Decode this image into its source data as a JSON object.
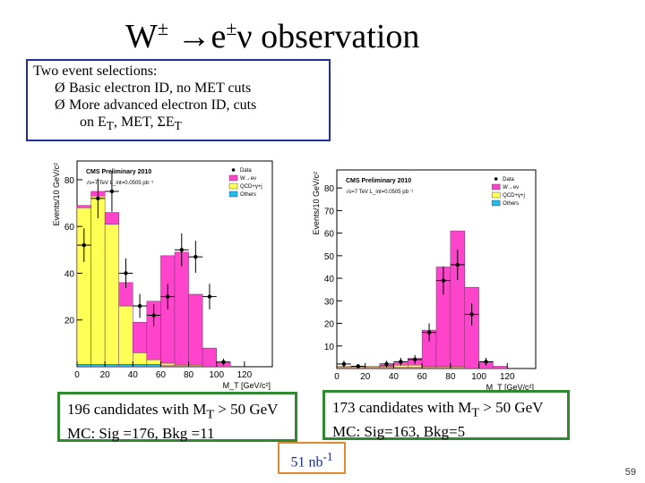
{
  "slide": {
    "title_w": "W",
    "title_pm1": "±",
    "title_arrow_e": " →e",
    "title_pm2": "±",
    "title_rest": "ν observation",
    "page_number": "59"
  },
  "selections": {
    "heading": "Two event selections:",
    "bullet_glyph": "Ø",
    "item1": "Basic electron ID, no MET cuts",
    "item2": "More advanced electron ID,  cuts",
    "item2_cont_pre": "on E",
    "item2_cont_sub": "T",
    "item2_cont_mid": ", MET, ΣE",
    "item2_cont_sub2": "T"
  },
  "candidates_left": {
    "line1_pre": "196 candidates with M",
    "line1_sub": "T",
    "line1_post": " > 50 GeV",
    "line2": "MC: Sig =176, Bkg =11"
  },
  "candidates_right": {
    "line1_pre": "173 candidates with M",
    "line1_sub": "T",
    "line1_post": " > 50 GeV",
    "line2": "MC: Sig=163, Bkg=5"
  },
  "luminosity": {
    "value": "51 nb",
    "sup": "-1"
  },
  "colors": {
    "signal": "#ff44cc",
    "qcd": "#ffff55",
    "others": "#22bbee",
    "data": "#000000",
    "box_blue": "#1f2f9e",
    "box_green": "#2f8a2f",
    "box_orange": "#e08a2c"
  },
  "chart_data": [
    {
      "type": "bar",
      "title": "CMS Preliminary 2010",
      "subtitle": "√s=7 TeV L_int=0.0505 pb⁻¹",
      "xlabel": "M_T [GeV/c²]",
      "ylabel": "Events/10 GeV/c²",
      "xlim": [
        0,
        140
      ],
      "ylim": [
        0,
        88
      ],
      "x_ticks": [
        "0",
        "20",
        "40",
        "60",
        "80",
        "100",
        "120"
      ],
      "y_ticks": [
        "20",
        "40",
        "60",
        "80"
      ],
      "legend": [
        "Data",
        "W→eν",
        "QCD+γ+j",
        "Others"
      ],
      "bin_edges": [
        0,
        10,
        20,
        30,
        40,
        50,
        60,
        70,
        80,
        90,
        100,
        110,
        120,
        130,
        140
      ],
      "series": [
        {
          "name": "Others",
          "values": [
            1,
            1,
            1,
            1,
            1,
            1,
            0.5,
            0.5,
            0.5,
            0,
            0,
            0,
            0,
            0
          ]
        },
        {
          "name": "QCD+γ+j",
          "values": [
            67,
            72,
            60,
            25,
            5,
            2,
            1,
            0.5,
            0.5,
            0,
            0,
            0,
            0,
            0
          ]
        },
        {
          "name": "W→eν",
          "values": [
            1,
            2,
            5,
            10,
            13,
            25,
            46,
            48,
            30,
            8,
            2,
            0,
            0,
            0
          ]
        },
        {
          "name": "Data",
          "values": [
            52,
            72,
            75,
            40,
            26,
            22,
            30,
            50,
            47,
            30,
            2,
            0,
            0,
            0
          ]
        }
      ]
    },
    {
      "type": "bar",
      "title": "CMS Preliminary 2010",
      "subtitle": "√s=7 TeV L_int=0.0505 pb⁻¹",
      "xlabel": "M_T [GeV/c²]",
      "ylabel": "Events/10 GeV/c²",
      "xlim": [
        0,
        140
      ],
      "ylim": [
        0,
        88
      ],
      "x_ticks": [
        "0",
        "20",
        "40",
        "60",
        "80",
        "100",
        "120"
      ],
      "y_ticks": [
        "10",
        "20",
        "30",
        "40",
        "50",
        "60",
        "70",
        "80"
      ],
      "legend": [
        "Data",
        "W→eν",
        "QCD+γ+j",
        "Others"
      ],
      "bin_edges": [
        0,
        10,
        20,
        30,
        40,
        50,
        60,
        70,
        80,
        90,
        100,
        110,
        120,
        130,
        140
      ],
      "series": [
        {
          "name": "Others",
          "values": [
            0.5,
            0.5,
            0.5,
            0.5,
            0.5,
            0.5,
            0.5,
            0.5,
            0.5,
            0,
            0,
            0,
            0,
            0
          ]
        },
        {
          "name": "QCD+γ+j",
          "values": [
            0.5,
            0.5,
            0.5,
            0.5,
            1,
            1,
            0.5,
            0.5,
            0.5,
            0,
            0,
            0,
            0,
            0
          ]
        },
        {
          "name": "W→eν",
          "values": [
            0,
            0,
            0,
            0.5,
            1,
            3,
            16,
            44,
            60,
            36,
            3,
            1,
            0,
            0
          ]
        },
        {
          "name": "Data",
          "values": [
            2,
            1,
            0,
            2,
            3,
            4,
            16,
            39,
            46,
            24,
            3,
            0,
            0,
            0
          ]
        }
      ]
    }
  ]
}
